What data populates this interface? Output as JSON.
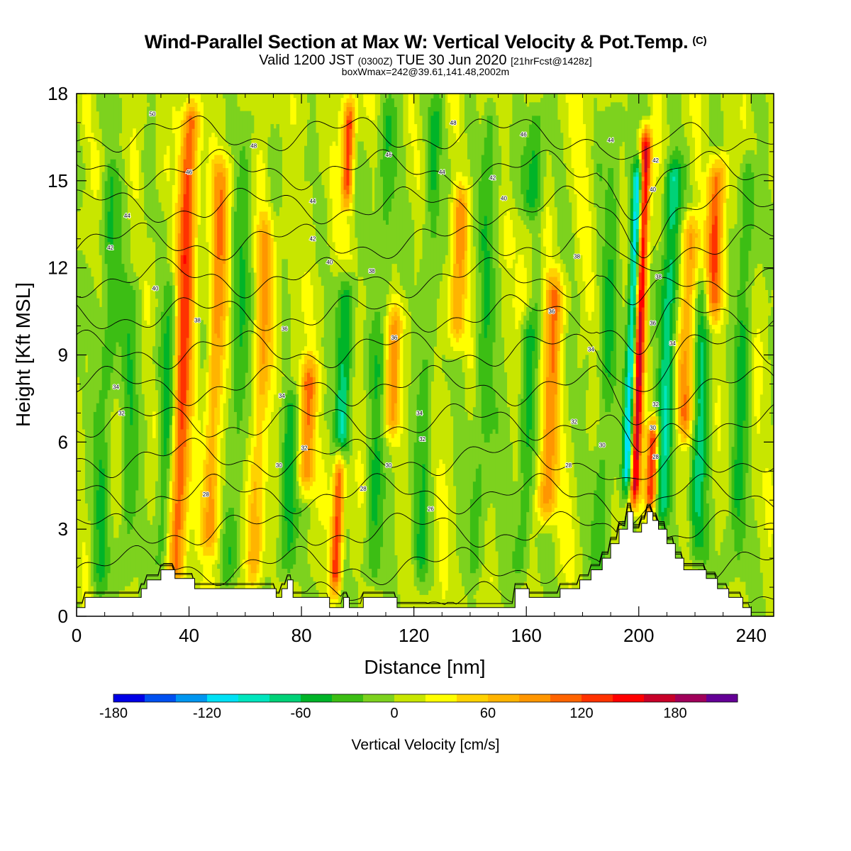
{
  "header": {
    "title": "Wind-Parallel Section at Max W: Vertical Velocity & Pot.Temp.",
    "title_tag": "(C)",
    "valid_prefix": "Valid 1200 JST",
    "valid_zulu": "(0300Z)",
    "valid_date": "TUE 30 Jun 2020",
    "forecast": "[21hrFcst@1428z]",
    "boxline": "boxWmax=242@39.61,141.48,2002m"
  },
  "chart_data": {
    "type": "heatmap",
    "xlabel": "Distance [nm]",
    "ylabel": "Height [Kft MSL]",
    "xlim": [
      0,
      248
    ],
    "ylim": [
      0,
      18
    ],
    "xticks": [
      0,
      40,
      80,
      120,
      160,
      200,
      240
    ],
    "yticks": [
      0,
      3,
      6,
      9,
      12,
      15,
      18
    ],
    "colorbar": {
      "label": "Vertical Velocity [cm/s]",
      "ticks": [
        -180,
        -120,
        -60,
        0,
        60,
        120,
        180
      ],
      "bins": [
        -180,
        -160,
        -140,
        -120,
        -100,
        -80,
        -60,
        -40,
        -20,
        0,
        20,
        40,
        60,
        80,
        100,
        120,
        140,
        160,
        180,
        200,
        220
      ],
      "colors": [
        "#0000e6",
        "#0050f0",
        "#0096f0",
        "#00e1f5",
        "#00e6be",
        "#00d278",
        "#00b428",
        "#3cbe14",
        "#7dd21e",
        "#c8e600",
        "#ffff00",
        "#ffd200",
        "#ffb400",
        "#ff9600",
        "#ff6400",
        "#ff3200",
        "#ff0000",
        "#c80028",
        "#a0005a",
        "#640096"
      ]
    },
    "terrain_kft": [
      [
        0,
        0.3
      ],
      [
        3,
        0.3
      ],
      [
        3,
        0.65
      ],
      [
        23,
        0.65
      ],
      [
        23,
        0.95
      ],
      [
        25,
        0.95
      ],
      [
        25,
        1.25
      ],
      [
        30,
        1.25
      ],
      [
        30,
        1.6
      ],
      [
        35,
        1.6
      ],
      [
        35,
        1.3
      ],
      [
        42,
        1.3
      ],
      [
        42,
        0.95
      ],
      [
        48,
        0.95
      ],
      [
        48,
        0.95
      ],
      [
        71,
        0.95
      ],
      [
        71,
        0.65
      ],
      [
        73,
        0.65
      ],
      [
        73,
        0.95
      ],
      [
        75,
        0.95
      ],
      [
        75,
        1.25
      ],
      [
        77,
        1.25
      ],
      [
        77,
        0.65
      ],
      [
        90,
        0.65
      ],
      [
        90,
        0.3
      ],
      [
        95,
        0.3
      ],
      [
        95,
        0.65
      ],
      [
        97,
        0.65
      ],
      [
        97,
        0.3
      ],
      [
        102,
        0.3
      ],
      [
        102,
        0.65
      ],
      [
        114,
        0.65
      ],
      [
        114,
        0.3
      ],
      [
        125,
        0.3
      ],
      [
        125,
        0.3
      ],
      [
        156,
        0.3
      ],
      [
        156,
        0.95
      ],
      [
        161,
        0.95
      ],
      [
        161,
        0.65
      ],
      [
        172,
        0.65
      ],
      [
        172,
        0.95
      ],
      [
        179,
        0.95
      ],
      [
        179,
        1.25
      ],
      [
        183,
        1.25
      ],
      [
        183,
        1.6
      ],
      [
        187,
        1.6
      ],
      [
        187,
        2.0
      ],
      [
        190,
        2.0
      ],
      [
        190,
        2.5
      ],
      [
        193,
        2.5
      ],
      [
        193,
        3.0
      ],
      [
        196,
        3.0
      ],
      [
        196,
        3.6
      ],
      [
        198,
        3.6
      ],
      [
        198,
        2.9
      ],
      [
        201,
        2.9
      ],
      [
        201,
        3.2
      ],
      [
        203,
        3.2
      ],
      [
        203,
        3.6
      ],
      [
        205,
        3.6
      ],
      [
        205,
        3.3
      ],
      [
        207,
        3.3
      ],
      [
        207,
        3.0
      ],
      [
        210,
        3.0
      ],
      [
        210,
        2.5
      ],
      [
        213,
        2.5
      ],
      [
        213,
        2.0
      ],
      [
        216,
        2.0
      ],
      [
        216,
        1.6
      ],
      [
        224,
        1.6
      ],
      [
        224,
        1.3
      ],
      [
        228,
        1.3
      ],
      [
        228,
        0.95
      ],
      [
        232,
        0.95
      ],
      [
        232,
        0.65
      ],
      [
        237,
        0.65
      ],
      [
        237,
        0.3
      ],
      [
        240,
        0.3
      ],
      [
        240,
        0.0
      ],
      [
        248,
        0.0
      ]
    ],
    "updrafts": [
      {
        "x": 35,
        "y0": 0.9,
        "y1": 18,
        "w": 120
      },
      {
        "x": 47,
        "y0": 2,
        "y1": 16,
        "w": 80
      },
      {
        "x": 63,
        "y0": 1,
        "y1": 14,
        "w": 60
      },
      {
        "x": 81,
        "y0": 4,
        "y1": 9,
        "w": 100
      },
      {
        "x": 92,
        "y0": 0.6,
        "y1": 6,
        "w": 130
      },
      {
        "x": 96,
        "y0": 14,
        "y1": 18,
        "w": 130
      },
      {
        "x": 112,
        "y0": 6,
        "y1": 11,
        "w": 70
      },
      {
        "x": 135,
        "y0": 9,
        "y1": 15,
        "w": 70
      },
      {
        "x": 160,
        "y0": 10,
        "y1": 14,
        "w": 60
      },
      {
        "x": 167,
        "y0": 3,
        "y1": 12,
        "w": 90
      },
      {
        "x": 198,
        "y0": 3.6,
        "y1": 17,
        "w": 190
      },
      {
        "x": 204,
        "y0": 3.3,
        "y1": 7,
        "w": 140
      },
      {
        "x": 216,
        "y0": 6,
        "y1": 14,
        "w": 90
      },
      {
        "x": 226,
        "y0": 10,
        "y1": 16,
        "w": 110
      }
    ],
    "downdrafts": [
      {
        "x": 8,
        "y0": 0.6,
        "y1": 16,
        "w": -40
      },
      {
        "x": 17,
        "y0": 0.6,
        "y1": 12,
        "w": -40
      },
      {
        "x": 30,
        "y0": 1,
        "y1": 12,
        "w": -50
      },
      {
        "x": 55,
        "y0": 1,
        "y1": 18,
        "w": -40
      },
      {
        "x": 74,
        "y0": 1,
        "y1": 8,
        "w": -60
      },
      {
        "x": 94,
        "y0": 5,
        "y1": 12,
        "w": -70
      },
      {
        "x": 105,
        "y0": 0.6,
        "y1": 18,
        "w": -40
      },
      {
        "x": 122,
        "y0": 1,
        "y1": 18,
        "w": -40
      },
      {
        "x": 142,
        "y0": 1,
        "y1": 18,
        "w": -40
      },
      {
        "x": 158,
        "y0": 1,
        "y1": 18,
        "w": -50
      },
      {
        "x": 186,
        "y0": 1,
        "y1": 18,
        "w": -40
      },
      {
        "x": 196,
        "y0": 4,
        "y1": 16,
        "w": -150
      },
      {
        "x": 208,
        "y0": 3,
        "y1": 16,
        "w": -80
      },
      {
        "x": 220,
        "y0": 1.5,
        "y1": 12,
        "w": -70
      },
      {
        "x": 234,
        "y0": 1,
        "y1": 16,
        "w": -50
      }
    ],
    "theta_contours_C": [
      22,
      24,
      26,
      28,
      30,
      32,
      34,
      36,
      38,
      40,
      42,
      44,
      46,
      48,
      50
    ],
    "theta_labels": [
      {
        "x": 27,
        "y": 17.3,
        "t": "50"
      },
      {
        "x": 63,
        "y": 16.2,
        "t": "48"
      },
      {
        "x": 40,
        "y": 15.3,
        "t": "46"
      },
      {
        "x": 18,
        "y": 13.8,
        "t": "44"
      },
      {
        "x": 12,
        "y": 12.7,
        "t": "42"
      },
      {
        "x": 28,
        "y": 11.3,
        "t": "40"
      },
      {
        "x": 43,
        "y": 10.2,
        "t": "38"
      },
      {
        "x": 74,
        "y": 9.9,
        "t": "36"
      },
      {
        "x": 14,
        "y": 7.9,
        "t": "34"
      },
      {
        "x": 16,
        "y": 7.0,
        "t": "32"
      },
      {
        "x": 46,
        "y": 4.2,
        "t": "28"
      },
      {
        "x": 84,
        "y": 14.3,
        "t": "44"
      },
      {
        "x": 84,
        "y": 13.0,
        "t": "42"
      },
      {
        "x": 90,
        "y": 12.2,
        "t": "40"
      },
      {
        "x": 105,
        "y": 11.9,
        "t": "38"
      },
      {
        "x": 113,
        "y": 9.6,
        "t": "36"
      },
      {
        "x": 73,
        "y": 7.6,
        "t": "34"
      },
      {
        "x": 81,
        "y": 5.8,
        "t": "32"
      },
      {
        "x": 72,
        "y": 5.2,
        "t": "30"
      },
      {
        "x": 134,
        "y": 17.0,
        "t": "48"
      },
      {
        "x": 111,
        "y": 15.9,
        "t": "46"
      },
      {
        "x": 130,
        "y": 15.3,
        "t": "44"
      },
      {
        "x": 148,
        "y": 15.1,
        "t": "42"
      },
      {
        "x": 152,
        "y": 14.4,
        "t": "40"
      },
      {
        "x": 159,
        "y": 16.6,
        "t": "46"
      },
      {
        "x": 178,
        "y": 12.4,
        "t": "38"
      },
      {
        "x": 169,
        "y": 10.5,
        "t": "36"
      },
      {
        "x": 183,
        "y": 9.2,
        "t": "34"
      },
      {
        "x": 122,
        "y": 7.0,
        "t": "34"
      },
      {
        "x": 123,
        "y": 6.1,
        "t": "32"
      },
      {
        "x": 111,
        "y": 5.2,
        "t": "30"
      },
      {
        "x": 102,
        "y": 4.4,
        "t": "28"
      },
      {
        "x": 126,
        "y": 3.7,
        "t": "26"
      },
      {
        "x": 177,
        "y": 6.7,
        "t": "32"
      },
      {
        "x": 187,
        "y": 5.9,
        "t": "30"
      },
      {
        "x": 175,
        "y": 5.2,
        "t": "28"
      },
      {
        "x": 190,
        "y": 16.4,
        "t": "44"
      },
      {
        "x": 206,
        "y": 15.7,
        "t": "42"
      },
      {
        "x": 205,
        "y": 14.7,
        "t": "40"
      },
      {
        "x": 207,
        "y": 11.7,
        "t": "38"
      },
      {
        "x": 205,
        "y": 10.1,
        "t": "36"
      },
      {
        "x": 212,
        "y": 9.4,
        "t": "34"
      },
      {
        "x": 206,
        "y": 7.3,
        "t": "32"
      },
      {
        "x": 205,
        "y": 6.5,
        "t": "30"
      },
      {
        "x": 206,
        "y": 5.5,
        "t": "28"
      }
    ]
  }
}
